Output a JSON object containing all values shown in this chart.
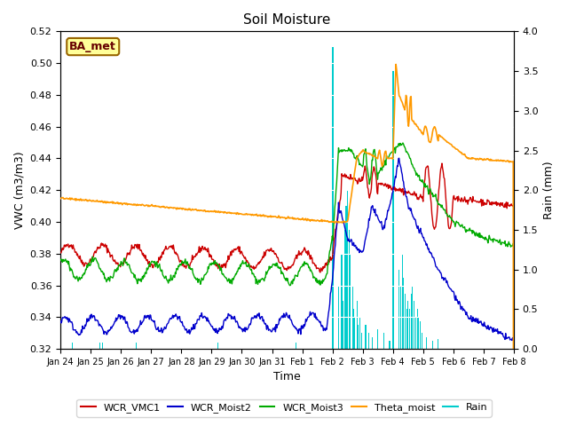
{
  "title": "Soil Moisture",
  "xlabel": "Time",
  "ylabel_left": "VWC (m3/m3)",
  "ylabel_right": "Rain (mm)",
  "ylim_left": [
    0.32,
    0.52
  ],
  "ylim_right": [
    0.0,
    4.0
  ],
  "yticks_left": [
    0.32,
    0.34,
    0.36,
    0.38,
    0.4,
    0.42,
    0.44,
    0.46,
    0.48,
    0.5,
    0.52
  ],
  "yticks_right": [
    0.0,
    0.5,
    1.0,
    1.5,
    2.0,
    2.5,
    3.0,
    3.5,
    4.0
  ],
  "xtick_labels": [
    "Jan 24",
    "Jan 25",
    "Jan 26",
    "Jan 27",
    "Jan 28",
    "Jan 29",
    "Jan 30",
    "Jan 31",
    "Feb 1",
    "Feb 2",
    "Feb 3",
    "Feb 4",
    "Feb 5",
    "Feb 6",
    "Feb 7",
    "Feb 8"
  ],
  "colors": {
    "WCR_VMC1": "#cc0000",
    "WCR_Moist2": "#0000cc",
    "WCR_Moist3": "#00aa00",
    "Theta_moist": "#ff9900",
    "Rain": "#00cccc",
    "background": "#e8e8e8",
    "box_fill": "#ffff99",
    "box_edge": "#996600",
    "box_text": "#660000"
  },
  "site_label": "BA_met",
  "num_points": 720
}
